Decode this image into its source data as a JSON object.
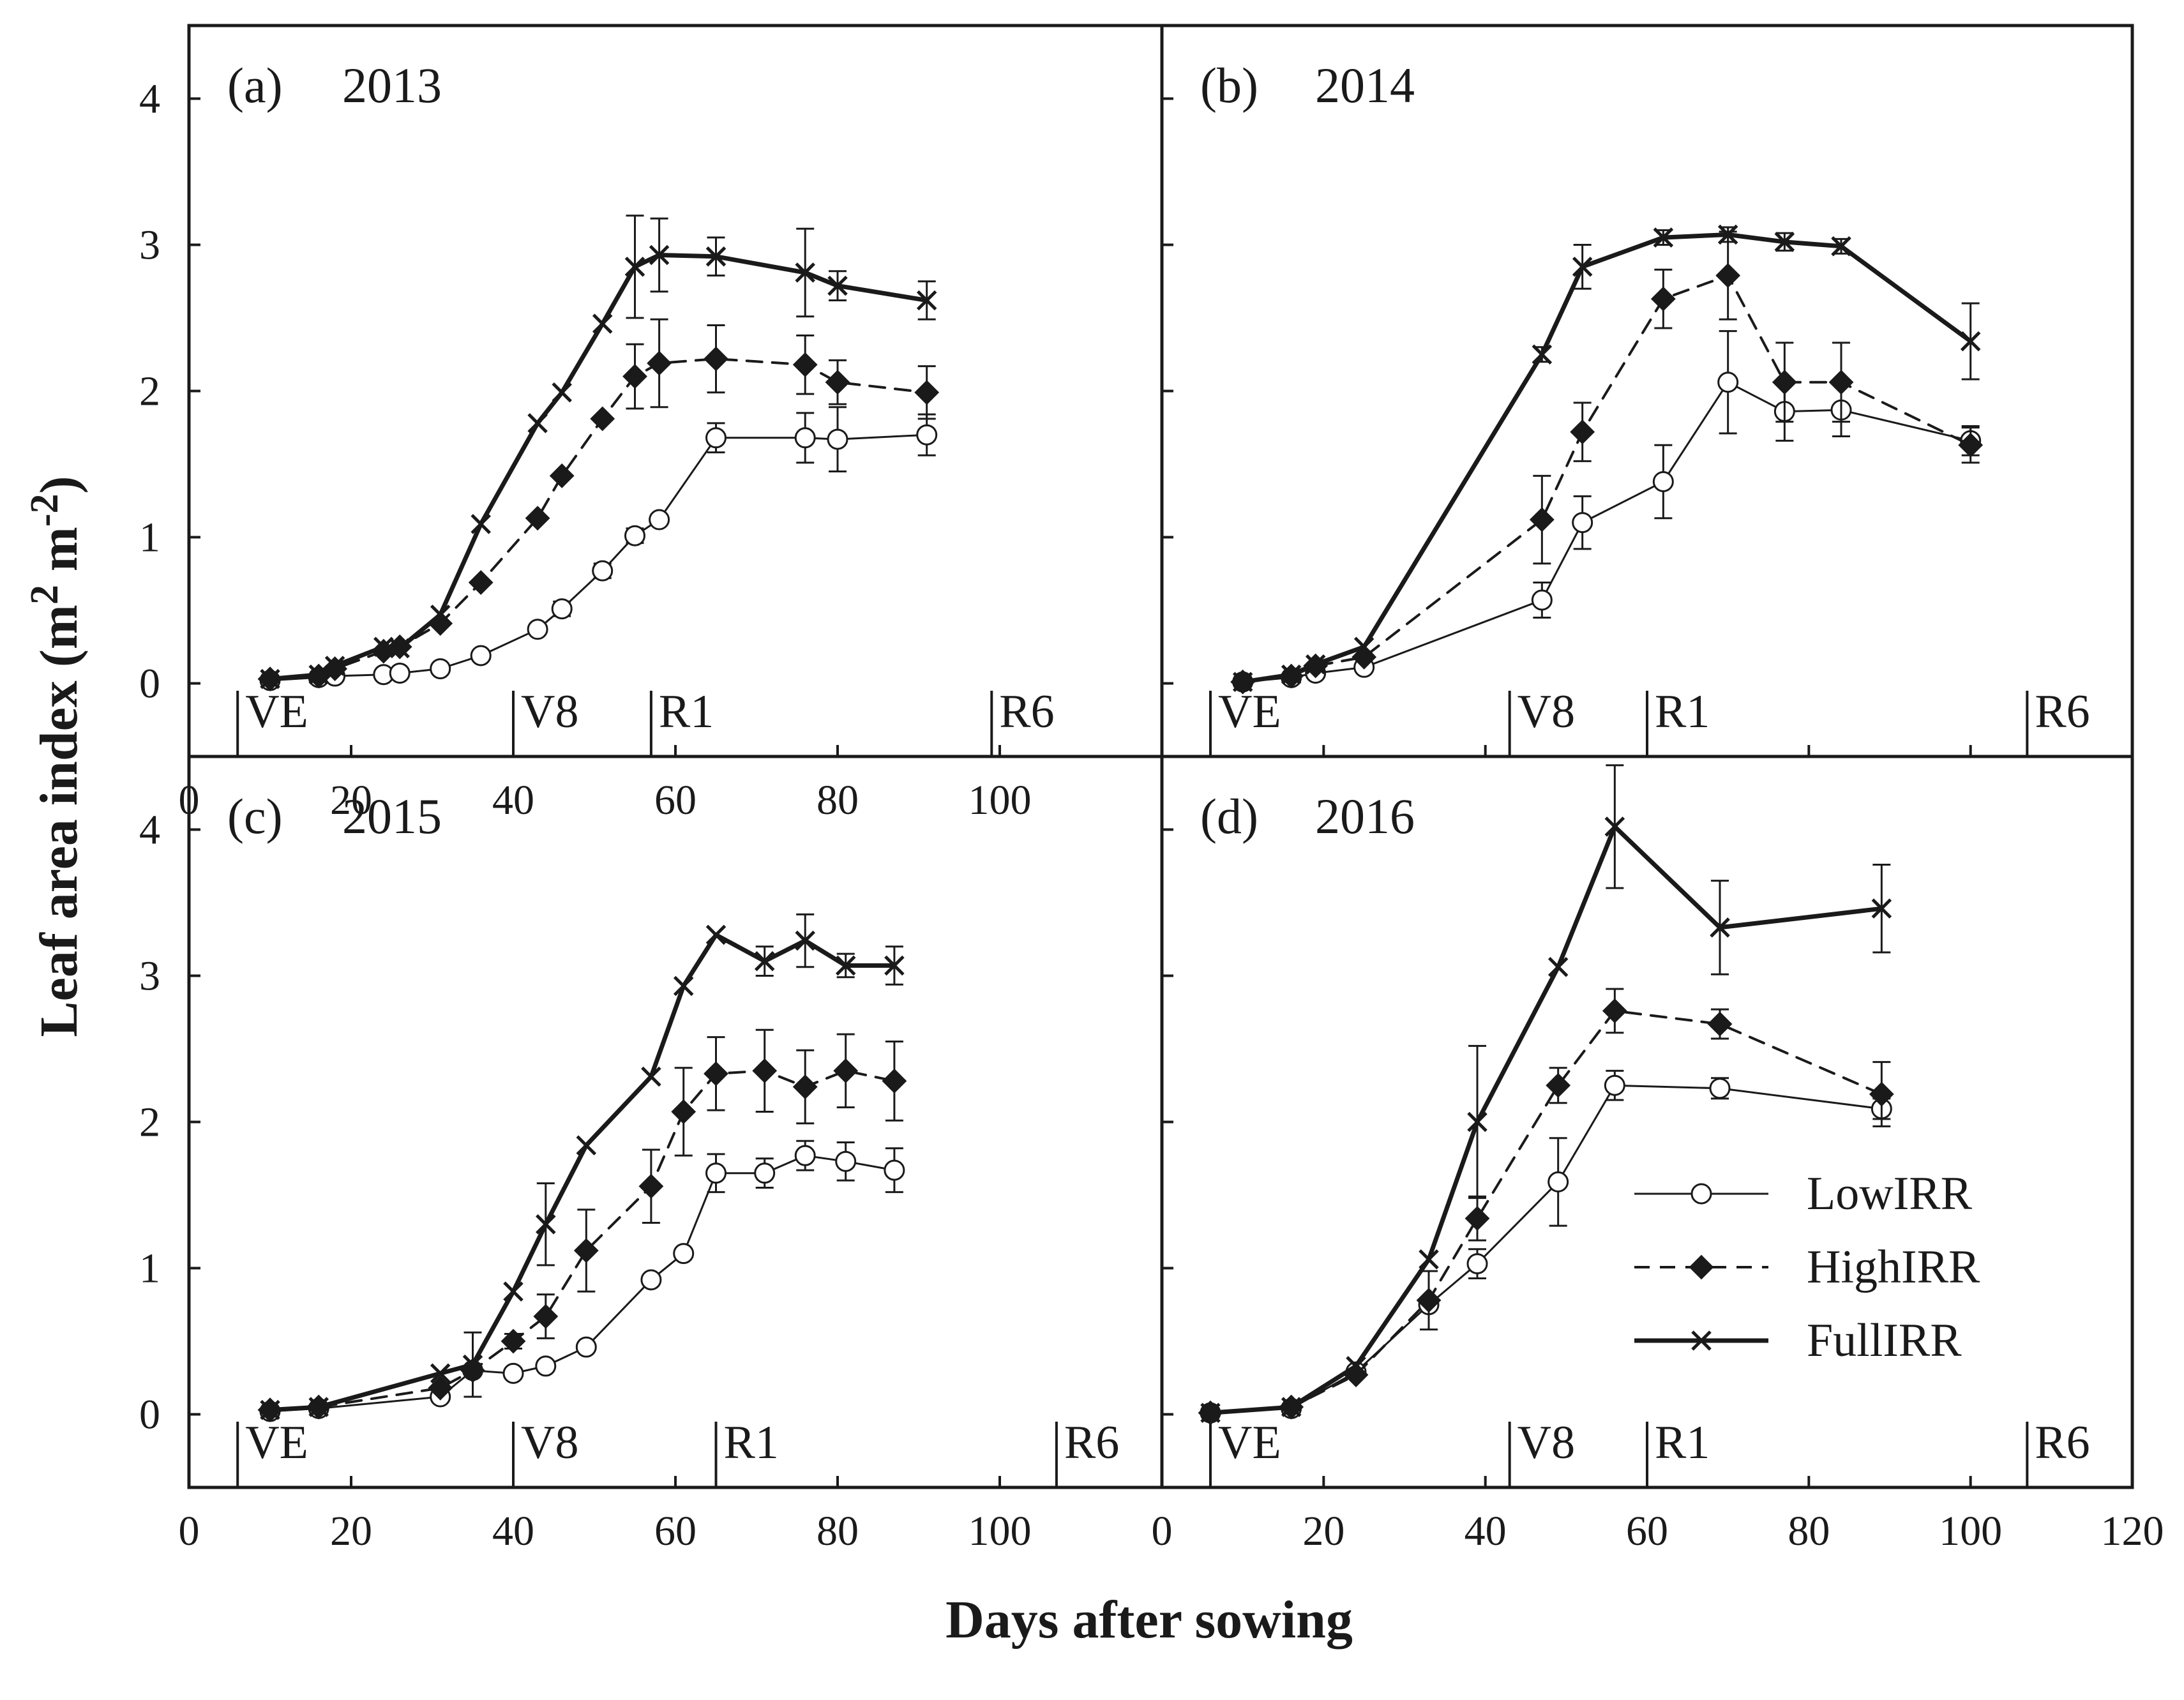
{
  "chart_data": {
    "type": "line",
    "ylabel_main": "Leaf area index (m",
    "ylabel_sup1": "2",
    "ylabel_mid": " m",
    "ylabel_sup2": "-2",
    "ylabel_end": ")",
    "xlabel": "Days after sowing",
    "legend": [
      {
        "name": "LowIRR",
        "marker": "open-circle",
        "line": "thin-solid"
      },
      {
        "name": "HighIRR",
        "marker": "filled-diamond",
        "line": "dashed"
      },
      {
        "name": "FullIRR",
        "marker": "x",
        "line": "thick-solid"
      }
    ],
    "y_ticks": [
      "0",
      "1",
      "2",
      "3",
      "4"
    ],
    "ylim": [
      -0.5,
      4.5
    ],
    "panels": [
      {
        "id": "a",
        "label": "(a)",
        "year": "2013",
        "xlim": [
          0,
          120
        ],
        "x_ticks": [
          "0",
          "20",
          "40",
          "60",
          "80",
          "100"
        ],
        "stages": [
          {
            "name": "VE",
            "day": 6
          },
          {
            "name": "V8",
            "day": 40
          },
          {
            "name": "R1",
            "day": 57
          },
          {
            "name": "R6",
            "day": 99
          }
        ],
        "series": [
          {
            "name": "LowIRR",
            "x": [
              10,
              16,
              18,
              24,
              26,
              31,
              36,
              43,
              46,
              51,
              55,
              58,
              65,
              76,
              80,
              91
            ],
            "y": [
              0.02,
              0.04,
              0.05,
              0.06,
              0.07,
              0.1,
              0.19,
              0.37,
              0.51,
              0.77,
              1.01,
              1.12,
              1.68,
              1.68,
              1.67,
              1.7
            ],
            "err": [
              0,
              0,
              0,
              0,
              0,
              0,
              0,
              0,
              0.05,
              0.05,
              0.05,
              0,
              0.1,
              0.17,
              0.22,
              0.14
            ]
          },
          {
            "name": "HighIRR",
            "x": [
              10,
              16,
              18,
              24,
              26,
              31,
              36,
              43,
              46,
              51,
              55,
              58,
              65,
              76,
              80,
              91
            ],
            "y": [
              0.03,
              0.05,
              0.1,
              0.22,
              0.25,
              0.41,
              0.69,
              1.13,
              1.42,
              1.81,
              2.1,
              2.19,
              2.22,
              2.18,
              2.06,
              1.99
            ],
            "err": [
              0,
              0,
              0,
              0,
              0,
              0,
              0,
              0,
              0,
              0,
              0.22,
              0.3,
              0.23,
              0.2,
              0.15,
              0.18
            ]
          },
          {
            "name": "FullIRR",
            "x": [
              10,
              16,
              18,
              24,
              26,
              31,
              36,
              43,
              46,
              51,
              55,
              58,
              65,
              76,
              80,
              91
            ],
            "y": [
              0.03,
              0.06,
              0.12,
              0.25,
              0.24,
              0.47,
              1.09,
              1.78,
              1.99,
              2.46,
              2.85,
              2.93,
              2.92,
              2.81,
              2.72,
              2.62
            ],
            "err": [
              0,
              0,
              0,
              0,
              0,
              0,
              0,
              0,
              0,
              0,
              0.35,
              0.25,
              0.13,
              0.3,
              0.1,
              0.13
            ]
          }
        ]
      },
      {
        "id": "b",
        "label": "(b)",
        "year": "2014",
        "xlim": [
          0,
          120
        ],
        "x_ticks": [],
        "stages": [
          {
            "name": "VE",
            "day": 6
          },
          {
            "name": "V8",
            "day": 43
          },
          {
            "name": "R1",
            "day": 60
          },
          {
            "name": "R6",
            "day": 107
          }
        ],
        "series": [
          {
            "name": "LowIRR",
            "x": [
              10,
              16,
              19,
              25,
              47,
              52,
              62,
              70,
              77,
              84,
              100
            ],
            "y": [
              0.01,
              0.04,
              0.07,
              0.11,
              0.57,
              1.1,
              1.38,
              2.06,
              1.86,
              1.87,
              1.66
            ],
            "err": [
              0,
              0,
              0,
              0,
              0.12,
              0.18,
              0.25,
              0.35,
              0.2,
              0.18,
              0.1
            ]
          },
          {
            "name": "HighIRR",
            "x": [
              10,
              16,
              19,
              25,
              47,
              52,
              62,
              70,
              77,
              84,
              100
            ],
            "y": [
              0.01,
              0.05,
              0.12,
              0.18,
              1.12,
              1.72,
              2.63,
              2.79,
              2.06,
              2.06,
              1.63
            ],
            "err": [
              0,
              0,
              0,
              0,
              0.3,
              0.2,
              0.2,
              0.3,
              0.27,
              0.27,
              0.12
            ]
          },
          {
            "name": "FullIRR",
            "x": [
              10,
              16,
              19,
              25,
              47,
              52,
              62,
              70,
              77,
              84,
              100
            ],
            "y": [
              0.01,
              0.06,
              0.13,
              0.25,
              2.25,
              2.85,
              3.05,
              3.07,
              3.02,
              2.99,
              2.34
            ],
            "err": [
              0,
              0,
              0,
              0,
              0.05,
              0.15,
              0.05,
              0.05,
              0.06,
              0.05,
              0.26
            ]
          }
        ]
      },
      {
        "id": "c",
        "label": "(c)",
        "year": "2015",
        "xlim": [
          0,
          120
        ],
        "x_ticks": [
          "0",
          "20",
          "40",
          "60",
          "80",
          "100"
        ],
        "stages": [
          {
            "name": "VE",
            "day": 6
          },
          {
            "name": "V8",
            "day": 40
          },
          {
            "name": "R1",
            "day": 65
          },
          {
            "name": "R6",
            "day": 107
          }
        ],
        "series": [
          {
            "name": "LowIRR",
            "x": [
              10,
              16,
              31,
              35,
              40,
              44,
              49,
              57,
              61,
              65,
              71,
              76,
              81,
              87
            ],
            "y": [
              0.02,
              0.04,
              0.12,
              0.3,
              0.28,
              0.33,
              0.46,
              0.92,
              1.1,
              1.65,
              1.65,
              1.77,
              1.73,
              1.67
            ],
            "err": [
              0,
              0,
              0,
              0,
              0,
              0,
              0,
              0,
              0,
              0.13,
              0.1,
              0.1,
              0.13,
              0.15
            ]
          },
          {
            "name": "HighIRR",
            "x": [
              10,
              16,
              31,
              35,
              40,
              44,
              49,
              57,
              61,
              65,
              71,
              76,
              81,
              87
            ],
            "y": [
              0.03,
              0.05,
              0.18,
              0.3,
              0.5,
              0.67,
              1.12,
              1.56,
              2.07,
              2.33,
              2.35,
              2.24,
              2.35,
              2.28
            ],
            "err": [
              0,
              0,
              0,
              0,
              0.05,
              0.15,
              0.28,
              0.25,
              0.3,
              0.25,
              0.28,
              0.25,
              0.25,
              0.27
            ]
          },
          {
            "name": "FullIRR",
            "x": [
              10,
              16,
              31,
              35,
              40,
              44,
              49,
              57,
              61,
              65,
              71,
              76,
              81,
              87
            ],
            "y": [
              0.03,
              0.05,
              0.28,
              0.34,
              0.84,
              1.3,
              1.84,
              2.31,
              2.93,
              3.28,
              3.1,
              3.24,
              3.07,
              3.07
            ],
            "err": [
              0,
              0,
              0,
              0.22,
              0,
              0.28,
              0,
              0,
              0,
              0,
              0.1,
              0.18,
              0.08,
              0.13
            ]
          }
        ]
      },
      {
        "id": "d",
        "label": "(d)",
        "year": "2016",
        "xlim": [
          0,
          120
        ],
        "x_ticks": [
          "0",
          "20",
          "40",
          "60",
          "80",
          "100",
          "120"
        ],
        "stages": [
          {
            "name": "VE",
            "day": 6
          },
          {
            "name": "V8",
            "day": 43
          },
          {
            "name": "R1",
            "day": 60
          },
          {
            "name": "R6",
            "day": 107
          }
        ],
        "series": [
          {
            "name": "LowIRR",
            "x": [
              6,
              16,
              24,
              33,
              39,
              49,
              56,
              69,
              89
            ],
            "y": [
              0.01,
              0.04,
              0.29,
              0.75,
              1.03,
              1.59,
              2.25,
              2.23,
              2.09
            ],
            "err": [
              0,
              0,
              0,
              0,
              0.1,
              0.3,
              0.1,
              0.07,
              0.07
            ]
          },
          {
            "name": "HighIRR",
            "x": [
              6,
              16,
              24,
              33,
              39,
              49,
              56,
              69,
              89
            ],
            "y": [
              0.01,
              0.05,
              0.27,
              0.78,
              1.34,
              2.25,
              2.76,
              2.67,
              2.19
            ],
            "err": [
              0,
              0,
              0,
              0.2,
              0.15,
              0.12,
              0.15,
              0.1,
              0.22
            ]
          },
          {
            "name": "FullIRR",
            "x": [
              6,
              16,
              24,
              33,
              39,
              49,
              56,
              69,
              89
            ],
            "y": [
              0.01,
              0.05,
              0.33,
              1.06,
              2.0,
              3.06,
              4.02,
              3.33,
              3.46
            ],
            "err": [
              0,
              0,
              0,
              0,
              0.52,
              0,
              0.42,
              0.32,
              0.3
            ]
          }
        ]
      }
    ]
  }
}
